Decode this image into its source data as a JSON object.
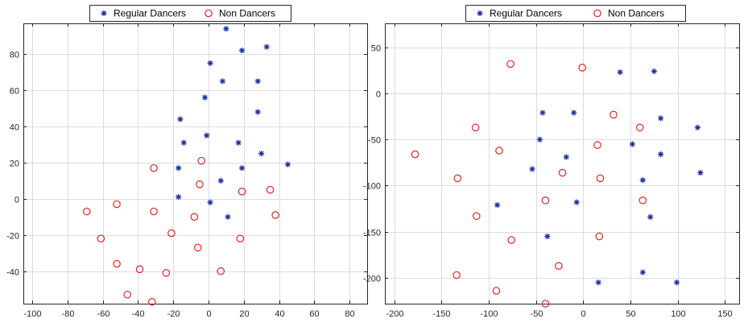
{
  "colors": {
    "regular": "#1a2e9a",
    "non": "#d62728",
    "grid": "#dcdcdc",
    "axis": "#262626"
  },
  "chart_data": [
    {
      "type": "scatter",
      "legend": {
        "position": "top",
        "entries": [
          "Regular Dancers",
          "Non Dancers"
        ]
      },
      "grid": true,
      "xlim": [
        -105,
        90
      ],
      "ylim": [
        -58,
        97
      ],
      "xticks": [
        -100,
        -80,
        -60,
        -40,
        -20,
        0,
        20,
        40,
        60,
        80
      ],
      "yticks": [
        -40,
        -20,
        0,
        20,
        40,
        60,
        80
      ],
      "series": [
        {
          "name": "Regular Dancers",
          "marker": "asterisk",
          "points": [
            [
              10,
              94
            ],
            [
              19,
              82
            ],
            [
              33,
              84
            ],
            [
              1,
              75
            ],
            [
              8,
              65
            ],
            [
              28,
              65
            ],
            [
              -2,
              56
            ],
            [
              28,
              48
            ],
            [
              -16,
              44
            ],
            [
              -1,
              35
            ],
            [
              -14,
              31
            ],
            [
              17,
              31
            ],
            [
              30,
              25
            ],
            [
              45,
              19
            ],
            [
              -17,
              17
            ],
            [
              19,
              17
            ],
            [
              7,
              10
            ],
            [
              -17,
              1
            ],
            [
              1,
              -2
            ],
            [
              11,
              -10
            ]
          ]
        },
        {
          "name": "Non Dancers",
          "marker": "circle",
          "points": [
            [
              -31,
              17
            ],
            [
              -4,
              21
            ],
            [
              -5,
              8
            ],
            [
              -69,
              -7
            ],
            [
              -52,
              -3
            ],
            [
              -31,
              -7
            ],
            [
              -8,
              -10
            ],
            [
              19,
              4
            ],
            [
              35,
              5
            ],
            [
              38,
              -9
            ],
            [
              -61,
              -22
            ],
            [
              -21,
              -19
            ],
            [
              18,
              -22
            ],
            [
              -52,
              -36
            ],
            [
              -39,
              -39
            ],
            [
              -24,
              -41
            ],
            [
              -6,
              -27
            ],
            [
              7,
              -40
            ],
            [
              -46,
              -53
            ],
            [
              -32,
              -57
            ]
          ]
        }
      ]
    },
    {
      "type": "scatter",
      "legend": {
        "position": "top",
        "entries": [
          "Regular Dancers",
          "Non Dancers"
        ]
      },
      "grid": true,
      "xlim": [
        -210,
        165
      ],
      "ylim": [
        -228,
        76
      ],
      "xticks": [
        -200,
        -150,
        -100,
        -50,
        0,
        50,
        100,
        150
      ],
      "yticks": [
        -200,
        -150,
        -100,
        -50,
        0,
        50
      ],
      "series": [
        {
          "name": "Regular Dancers",
          "marker": "asterisk",
          "points": [
            [
              -43,
              -21
            ],
            [
              -10,
              -21
            ],
            [
              39,
              23
            ],
            [
              75,
              24
            ],
            [
              -46,
              -50
            ],
            [
              -18,
              -69
            ],
            [
              -54,
              -82
            ],
            [
              52,
              -55
            ],
            [
              82,
              -27
            ],
            [
              121,
              -37
            ],
            [
              82,
              -66
            ],
            [
              63,
              -94
            ],
            [
              124,
              -86
            ],
            [
              -91,
              -121
            ],
            [
              -7,
              -118
            ],
            [
              71,
              -134
            ],
            [
              -38,
              -155
            ],
            [
              16,
              -205
            ],
            [
              63,
              -194
            ],
            [
              99,
              -205
            ]
          ]
        },
        {
          "name": "Non Dancers",
          "marker": "circle",
          "points": [
            [
              -77,
              32
            ],
            [
              -1,
              28
            ],
            [
              -114,
              -37
            ],
            [
              32,
              -23
            ],
            [
              60,
              -37
            ],
            [
              -89,
              -62
            ],
            [
              15,
              -56
            ],
            [
              -178,
              -66
            ],
            [
              -133,
              -92
            ],
            [
              -22,
              -86
            ],
            [
              18,
              -92
            ],
            [
              -40,
              -116
            ],
            [
              63,
              -116
            ],
            [
              -113,
              -133
            ],
            [
              -76,
              -159
            ],
            [
              17,
              -155
            ],
            [
              -26,
              -187
            ],
            [
              -134,
              -197
            ],
            [
              -92,
              -214
            ],
            [
              -40,
              -228
            ]
          ]
        }
      ]
    }
  ]
}
